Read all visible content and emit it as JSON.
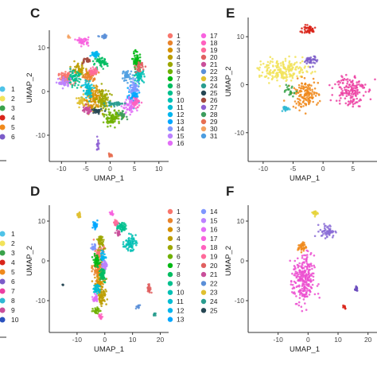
{
  "chart_data": [
    {
      "panel": "C",
      "type": "scatter",
      "xlabel": "UMAP_1",
      "ylabel": "UMAP_2",
      "xticks": [
        "-10",
        "-5",
        "0",
        "5",
        "10"
      ],
      "yticks": [
        "10",
        "0",
        "-10"
      ],
      "xlim": [
        -12.5,
        12
      ],
      "ylim": [
        -16,
        14
      ],
      "legend": [
        "1",
        "2",
        "3",
        "4",
        "5",
        "6",
        "7",
        "8",
        "9",
        "10",
        "11",
        "12",
        "13",
        "14",
        "15",
        "16",
        "17",
        "18",
        "19",
        "20",
        "21",
        "22",
        "23",
        "24",
        "25",
        "26",
        "27",
        "28",
        "29",
        "30",
        "31"
      ],
      "legend_placement": "right",
      "clusters": [
        {
          "name": "1",
          "x": -9.0,
          "y": 3.0,
          "sx": 1.2,
          "sy": 1.0,
          "n": 90
        },
        {
          "name": "2",
          "x": -4.2,
          "y": 3.6,
          "sx": 1.0,
          "sy": 0.9,
          "n": 80
        },
        {
          "name": "3",
          "x": -3.5,
          "y": -1.5,
          "sx": 1.3,
          "sy": 2.2,
          "n": 130
        },
        {
          "name": "4",
          "x": -6.5,
          "y": 5.0,
          "sx": 1.0,
          "sy": 1.0,
          "n": 60
        },
        {
          "name": "5",
          "x": -1.5,
          "y": -2.0,
          "sx": 0.9,
          "sy": 1.8,
          "n": 90
        },
        {
          "name": "6",
          "x": 0.5,
          "y": -6.0,
          "sx": 1.2,
          "sy": 1.2,
          "n": 90
        },
        {
          "name": "7",
          "x": 5.5,
          "y": 7.0,
          "sx": 0.6,
          "sy": 1.6,
          "n": 60
        },
        {
          "name": "8",
          "x": -2.0,
          "y": 6.5,
          "sx": 1.0,
          "sy": 0.8,
          "n": 60
        },
        {
          "name": "9",
          "x": -7.5,
          "y": 3.0,
          "sx": 1.0,
          "sy": 1.2,
          "n": 60
        },
        {
          "name": "10",
          "x": 6.0,
          "y": 3.5,
          "sx": 0.7,
          "sy": 1.0,
          "n": 60
        },
        {
          "name": "11",
          "x": -4.5,
          "y": 0.5,
          "sx": 0.8,
          "sy": 1.5,
          "n": 60
        },
        {
          "name": "12",
          "x": -3.0,
          "y": 8.5,
          "sx": 0.6,
          "sy": 0.5,
          "n": 40
        },
        {
          "name": "13",
          "x": 4.8,
          "y": -1.0,
          "sx": 0.8,
          "sy": 1.2,
          "n": 60
        },
        {
          "name": "14",
          "x": 5.0,
          "y": 1.0,
          "sx": 0.7,
          "sy": 1.0,
          "n": 50
        },
        {
          "name": "15",
          "x": -9.5,
          "y": 2.0,
          "sx": 0.8,
          "sy": 0.8,
          "n": 40
        },
        {
          "name": "16",
          "x": 4.0,
          "y": -3.5,
          "sx": 1.0,
          "sy": 1.2,
          "n": 60
        },
        {
          "name": "17",
          "x": -5.5,
          "y": 11.5,
          "sx": 0.8,
          "sy": 0.6,
          "n": 45
        },
        {
          "name": "18",
          "x": 5.3,
          "y": -2.5,
          "sx": 0.6,
          "sy": 0.8,
          "n": 40
        },
        {
          "name": "19",
          "x": -3.5,
          "y": 4.5,
          "sx": 0.6,
          "sy": 0.6,
          "n": 35
        },
        {
          "name": "20",
          "x": 6.0,
          "y": 5.5,
          "sx": 0.5,
          "sy": 0.8,
          "n": 40
        },
        {
          "name": "21",
          "x": -4.8,
          "y": -4.2,
          "sx": 0.7,
          "sy": 0.6,
          "n": 40
        },
        {
          "name": "22",
          "x": -1.2,
          "y": 12.5,
          "sx": 0.6,
          "sy": 0.3,
          "n": 20
        },
        {
          "name": "23",
          "x": -6.0,
          "y": -2.5,
          "sx": 0.6,
          "sy": 0.8,
          "n": 30
        },
        {
          "name": "24",
          "x": 1.0,
          "y": -2.8,
          "sx": 1.4,
          "sy": 0.4,
          "n": 40
        },
        {
          "name": "25",
          "x": -2.8,
          "y": -4.5,
          "sx": 0.7,
          "sy": 0.5,
          "n": 30
        },
        {
          "name": "26",
          "x": -5.0,
          "y": 7.0,
          "sx": 0.6,
          "sy": 0.5,
          "n": 25
        },
        {
          "name": "27",
          "x": -2.5,
          "y": -12.0,
          "sx": 0.3,
          "sy": 1.0,
          "n": 15
        },
        {
          "name": "28",
          "x": 2.5,
          "y": -5.5,
          "sx": 0.6,
          "sy": 0.6,
          "n": 25
        },
        {
          "name": "29",
          "x": 0.0,
          "y": -14.5,
          "sx": 0.3,
          "sy": 0.3,
          "n": 12
        },
        {
          "name": "30",
          "x": -8.5,
          "y": 12.5,
          "sx": 0.3,
          "sy": 0.2,
          "n": 6
        },
        {
          "name": "31",
          "x": 3.5,
          "y": 3.5,
          "sx": 0.8,
          "sy": 1.0,
          "n": 40
        }
      ]
    },
    {
      "panel": "E",
      "type": "scatter",
      "xlabel": "UMAP_1",
      "ylabel": "UMAP_2",
      "xticks": [
        "-10",
        "-5",
        "0",
        "5"
      ],
      "yticks": [
        "10",
        "0",
        "-10"
      ],
      "xlim": [
        -12.5,
        9
      ],
      "ylim": [
        -16,
        14
      ],
      "legend": [],
      "clusters": [
        {
          "name": "yellow",
          "x": -6.5,
          "y": 3.0,
          "sx": 3.0,
          "sy": 1.6,
          "n": 200,
          "color": "#f2e35a"
        },
        {
          "name": "orange",
          "x": -3.0,
          "y": -2.0,
          "sx": 1.6,
          "sy": 2.0,
          "n": 140,
          "color": "#f08a1c"
        },
        {
          "name": "magenta",
          "x": 4.5,
          "y": -1.0,
          "sx": 1.8,
          "sy": 2.5,
          "n": 150,
          "color": "#ec3fa2"
        },
        {
          "name": "red-top",
          "x": -2.5,
          "y": 11.5,
          "sx": 1.0,
          "sy": 0.6,
          "n": 50,
          "color": "#d9241a"
        },
        {
          "name": "purple",
          "x": -2.0,
          "y": 5.0,
          "sx": 0.7,
          "sy": 0.7,
          "n": 40,
          "color": "#7b5cc9"
        },
        {
          "name": "cyan",
          "x": -6.0,
          "y": -5.0,
          "sx": 0.5,
          "sy": 0.5,
          "n": 25,
          "color": "#2fb8d4"
        },
        {
          "name": "green",
          "x": -5.5,
          "y": -1.5,
          "sx": 0.6,
          "sy": 0.7,
          "n": 25,
          "color": "#3aa34b"
        }
      ]
    },
    {
      "panel": "D",
      "type": "scatter",
      "xlabel": "UMAP_1",
      "ylabel": "UMAP_2",
      "xticks": [
        "-10",
        "0",
        "10",
        "20"
      ],
      "yticks": [
        "10",
        "0",
        "-10"
      ],
      "xlim": [
        -20,
        23
      ],
      "ylim": [
        -18,
        14
      ],
      "legend": [
        "1",
        "2",
        "3",
        "4",
        "5",
        "6",
        "7",
        "8",
        "9",
        "10",
        "11",
        "12",
        "13",
        "14",
        "15",
        "16",
        "17",
        "18",
        "19",
        "20",
        "21",
        "22",
        "23",
        "24",
        "25"
      ],
      "legend_placement": "right",
      "clusters": [
        {
          "name": "1",
          "x": -2.0,
          "y": 2.0,
          "sx": 1.2,
          "sy": 1.5,
          "n": 70
        },
        {
          "name": "2",
          "x": -2.5,
          "y": -2.0,
          "sx": 1.3,
          "sy": 1.8,
          "n": 80
        },
        {
          "name": "3",
          "x": -2.0,
          "y": -5.5,
          "sx": 1.2,
          "sy": 1.5,
          "n": 70
        },
        {
          "name": "4",
          "x": -1.0,
          "y": -9.0,
          "sx": 1.2,
          "sy": 1.5,
          "n": 60
        },
        {
          "name": "5",
          "x": -1.5,
          "y": 5.0,
          "sx": 1.0,
          "sy": 1.2,
          "n": 50
        },
        {
          "name": "6",
          "x": -3.0,
          "y": -12.5,
          "sx": 0.8,
          "sy": 0.6,
          "n": 30
        },
        {
          "name": "7",
          "x": -3.0,
          "y": 0.0,
          "sx": 0.9,
          "sy": 1.0,
          "n": 45
        },
        {
          "name": "8",
          "x": -1.0,
          "y": -3.5,
          "sx": 1.0,
          "sy": 1.2,
          "n": 45
        },
        {
          "name": "9",
          "x": 6.0,
          "y": 8.5,
          "sx": 1.2,
          "sy": 0.8,
          "n": 50
        },
        {
          "name": "10",
          "x": 9.0,
          "y": 4.5,
          "sx": 1.5,
          "sy": 1.3,
          "n": 70
        },
        {
          "name": "11",
          "x": -2.8,
          "y": -7.0,
          "sx": 0.8,
          "sy": 1.0,
          "n": 40
        },
        {
          "name": "12",
          "x": -0.5,
          "y": 1.0,
          "sx": 0.7,
          "sy": 1.0,
          "n": 30
        },
        {
          "name": "13",
          "x": -3.5,
          "y": 9.0,
          "sx": 0.6,
          "sy": 0.7,
          "n": 30
        },
        {
          "name": "14",
          "x": -4.0,
          "y": 3.5,
          "sx": 0.6,
          "sy": 0.6,
          "n": 25
        },
        {
          "name": "15",
          "x": 0.0,
          "y": -1.0,
          "sx": 0.6,
          "sy": 0.8,
          "n": 25
        },
        {
          "name": "16",
          "x": -3.5,
          "y": -9.5,
          "sx": 0.6,
          "sy": 0.7,
          "n": 25
        },
        {
          "name": "17",
          "x": 2.5,
          "y": 12.0,
          "sx": 0.4,
          "sy": 0.4,
          "n": 18
        },
        {
          "name": "18",
          "x": -1.5,
          "y": -14.0,
          "sx": 0.5,
          "sy": 0.4,
          "n": 18
        },
        {
          "name": "19",
          "x": 4.0,
          "y": 9.5,
          "sx": 0.6,
          "sy": 0.5,
          "n": 20
        },
        {
          "name": "20",
          "x": 16.0,
          "y": -7.0,
          "sx": 0.5,
          "sy": 0.8,
          "n": 25
        },
        {
          "name": "21",
          "x": 5.0,
          "y": 7.0,
          "sx": 0.6,
          "sy": 0.5,
          "n": 20
        },
        {
          "name": "22",
          "x": 12.0,
          "y": -11.5,
          "sx": 0.5,
          "sy": 0.4,
          "n": 15
        },
        {
          "name": "23",
          "x": -9.5,
          "y": 11.5,
          "sx": 0.5,
          "sy": 0.5,
          "n": 18
        },
        {
          "name": "24",
          "x": 18.0,
          "y": -13.5,
          "sx": 0.4,
          "sy": 0.3,
          "n": 10
        },
        {
          "name": "25",
          "x": -15.0,
          "y": -6.0,
          "sx": 0.2,
          "sy": 0.2,
          "n": 4
        }
      ]
    },
    {
      "panel": "F",
      "type": "scatter",
      "xlabel": "UMAP_1",
      "ylabel": "UMAP_2",
      "xticks": [
        "-10",
        "0",
        "10",
        "20"
      ],
      "yticks": [
        "10",
        "0",
        "-10"
      ],
      "xlim": [
        -20,
        23
      ],
      "ylim": [
        -18,
        14
      ],
      "legend": [],
      "clusters": [
        {
          "name": "magenta",
          "x": -1.5,
          "y": -5.0,
          "sx": 2.5,
          "sy": 4.5,
          "n": 260,
          "color": "#ec4fd0"
        },
        {
          "name": "purple-top",
          "x": 6.5,
          "y": 7.5,
          "sx": 1.8,
          "sy": 1.2,
          "n": 60,
          "color": "#8a6cd6"
        },
        {
          "name": "orange",
          "x": -2.0,
          "y": 3.5,
          "sx": 1.0,
          "sy": 0.8,
          "n": 40,
          "color": "#f08a1c"
        },
        {
          "name": "yellow",
          "x": 2.5,
          "y": 12.0,
          "sx": 0.6,
          "sy": 0.5,
          "n": 20,
          "color": "#e6d43b"
        },
        {
          "name": "purple-small",
          "x": 16.0,
          "y": -7.0,
          "sx": 0.5,
          "sy": 0.7,
          "n": 15,
          "color": "#6b4bbd"
        },
        {
          "name": "red-small",
          "x": 12.0,
          "y": -11.5,
          "sx": 0.5,
          "sy": 0.4,
          "n": 12,
          "color": "#d9241a"
        }
      ]
    }
  ],
  "fragments": {
    "left_top_legend": [
      "1",
      "2",
      "3",
      "4",
      "5",
      "6"
    ],
    "left_bottom_legend": [
      "1",
      "2",
      "3",
      "4",
      "5",
      "6",
      "7",
      "8",
      "9",
      "10"
    ]
  }
}
